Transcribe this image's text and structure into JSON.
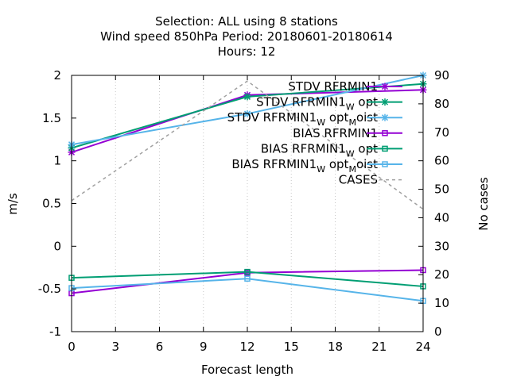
{
  "chart_data": {
    "type": "line",
    "title_lines": [
      "Selection: ALL using     8 stations",
      "Wind speed 850hPa   Period: 20180601-20180614",
      "Hours:  12"
    ],
    "xlabel": "Forecast length",
    "ylabel": "m/s",
    "y2label": "No cases",
    "x_ticks": [
      0,
      3,
      6,
      9,
      12,
      15,
      18,
      21,
      24
    ],
    "xlim": [
      0,
      24
    ],
    "ylim": [
      -1,
      2
    ],
    "y_ticks": [
      -1,
      -0.5,
      0,
      0.5,
      1,
      1.5,
      2
    ],
    "y_tick_labels": [
      "-1",
      "-0.5",
      "0",
      "0.5",
      "1",
      "1.5",
      "2"
    ],
    "y2lim": [
      0,
      90
    ],
    "y2_ticks": [
      0,
      10,
      20,
      30,
      40,
      50,
      60,
      70,
      80,
      90
    ],
    "legend_position": "top-right",
    "x": [
      0,
      12,
      24
    ],
    "series": [
      {
        "name": "STDV RFRMIN1",
        "base": "STDV RFRMIN1",
        "sub1": "",
        "mid": "",
        "sub2": "",
        "color": "#9400d3",
        "marker": "x",
        "axis": "y",
        "dash": false,
        "values": [
          1.1,
          1.77,
          1.83
        ]
      },
      {
        "name": "STDV RFRMIN1_W opt",
        "base": "STDV RFRMIN1",
        "sub1": "W",
        "mid": "opt",
        "sub2": "",
        "color": "#009e73",
        "marker": "x",
        "axis": "y",
        "dash": false,
        "values": [
          1.15,
          1.75,
          1.9
        ]
      },
      {
        "name": "STDV RFRMIN1_W opt_M oist",
        "base": "STDV RFRMIN1",
        "sub1": "W",
        "mid": "opt",
        "sub2": "M",
        "tail": "oist",
        "color": "#56b4e9",
        "marker": "x",
        "axis": "y",
        "dash": false,
        "values": [
          1.19,
          1.55,
          2.0
        ]
      },
      {
        "name": "BIAS RFRMIN1",
        "base": "BIAS RFRMIN1",
        "sub1": "",
        "mid": "",
        "sub2": "",
        "color": "#9400d3",
        "marker": "square",
        "axis": "y",
        "dash": false,
        "values": [
          -0.55,
          -0.31,
          -0.28
        ]
      },
      {
        "name": "BIAS RFRMIN1_W opt",
        "base": "BIAS RFRMIN1",
        "sub1": "W",
        "mid": "opt",
        "sub2": "",
        "color": "#009e73",
        "marker": "square",
        "axis": "y",
        "dash": false,
        "values": [
          -0.37,
          -0.3,
          -0.47
        ]
      },
      {
        "name": "BIAS RFRMIN1_W opt_M oist",
        "base": "BIAS RFRMIN1",
        "sub1": "W",
        "mid": "opt",
        "sub2": "M",
        "tail": "oist",
        "color": "#56b4e9",
        "marker": "square",
        "axis": "y",
        "dash": false,
        "values": [
          -0.49,
          -0.38,
          -0.64
        ]
      },
      {
        "name": "CASES",
        "base": "CASES",
        "sub1": "",
        "mid": "",
        "sub2": "",
        "color": "#a0a0a0",
        "marker": "none",
        "axis": "y2",
        "dash": true,
        "values": [
          46,
          88,
          43
        ]
      }
    ]
  }
}
